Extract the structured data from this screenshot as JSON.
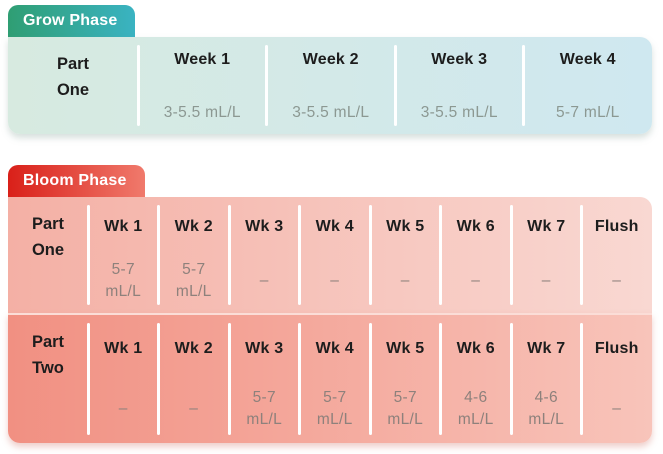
{
  "colors": {
    "grow_badge_start": "#2f9e73",
    "grow_badge_end": "#3ab3c2",
    "grow_table_start": "#d7eae0",
    "grow_table_end": "#cfe8f0",
    "bloom_badge_start": "#d92019",
    "bloom_badge_end": "#f07a6c",
    "bloom_row1_start": "#f4b0a5",
    "bloom_row1_end": "#f9d8d2",
    "bloom_row2_start": "#f19082",
    "bloom_row2_end": "#f8c4ba",
    "header_text": "#1d1d1d",
    "grow_value_text": "#8c9892",
    "bloom_value_text": "#8e817c"
  },
  "chart_data": [
    {
      "type": "table",
      "title": "Grow Phase",
      "row_labels": [
        "Part One"
      ],
      "columns": [
        "Week 1",
        "Week 2",
        "Week 3",
        "Week 4"
      ],
      "rows": [
        [
          "3-5.5 mL/L",
          "3-5.5 mL/L",
          "3-5.5 mL/L",
          "5-7 mL/L"
        ]
      ],
      "unit": "mL/L",
      "legend_position": "none",
      "grid": false
    },
    {
      "type": "table",
      "title": "Bloom Phase",
      "row_labels": [
        "Part One",
        "Part Two"
      ],
      "columns": [
        "Wk 1",
        "Wk 2",
        "Wk 3",
        "Wk 4",
        "Wk 5",
        "Wk 6",
        "Wk 7",
        "Flush"
      ],
      "rows": [
        [
          "5-7 mL/L",
          "5-7 mL/L",
          "–",
          "–",
          "–",
          "–",
          "–",
          "–"
        ],
        [
          "–",
          "–",
          "5-7 mL/L",
          "5-7 mL/L",
          "5-7 mL/L",
          "4-6 mL/L",
          "4-6 mL/L",
          "–"
        ]
      ],
      "unit": "mL/L",
      "legend_position": "none",
      "grid": false
    }
  ]
}
